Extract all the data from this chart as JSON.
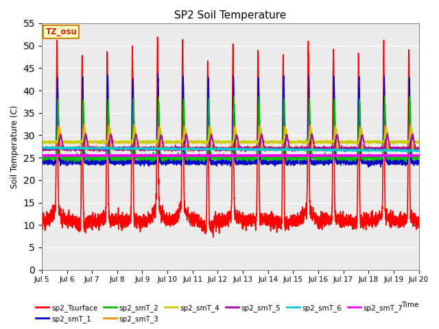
{
  "title": "SP2 Soil Temperature",
  "ylabel": "Soil Temperature (C)",
  "xlabel": "Time",
  "ylim": [
    0,
    55
  ],
  "yticks": [
    0,
    5,
    10,
    15,
    20,
    25,
    30,
    35,
    40,
    45,
    50,
    55
  ],
  "xtick_labels": [
    "Jul 5",
    "Jul 6",
    "Jul 7",
    "Jul 8",
    "Jul 9",
    "Jul 10",
    "Jul 11",
    "Jul 12",
    "Jul 13",
    "Jul 14",
    "Jul 15",
    "Jul 16",
    "Jul 17",
    "Jul 18",
    "Jul 19",
    "Jul 20"
  ],
  "annotation_text": "TZ_osu",
  "annotation_bg": "#FFFFCC",
  "annotation_border": "#CC8800",
  "series_order": [
    "sp2_Tsurface",
    "sp2_smT_1",
    "sp2_smT_2",
    "sp2_smT_3",
    "sp2_smT_4",
    "sp2_smT_5",
    "sp2_smT_6",
    "sp2_smT_7"
  ],
  "series": {
    "sp2_Tsurface": {
      "color": "#FF0000",
      "lw": 1.2
    },
    "sp2_smT_1": {
      "color": "#0000CC",
      "lw": 1.2
    },
    "sp2_smT_2": {
      "color": "#00BB00",
      "lw": 1.2
    },
    "sp2_smT_3": {
      "color": "#FF8800",
      "lw": 1.2
    },
    "sp2_smT_4": {
      "color": "#CCCC00",
      "lw": 1.2
    },
    "sp2_smT_5": {
      "color": "#AA00AA",
      "lw": 1.2
    },
    "sp2_smT_6": {
      "color": "#00CCCC",
      "lw": 1.5
    },
    "sp2_smT_7": {
      "color": "#FF00FF",
      "lw": 2.0
    }
  },
  "plot_bg": "#EBEBEB",
  "fig_bg": "#FFFFFF",
  "grid_color": "#FFFFFF",
  "legend_ncol_row1": 6,
  "legend_ncol_row2": 2
}
